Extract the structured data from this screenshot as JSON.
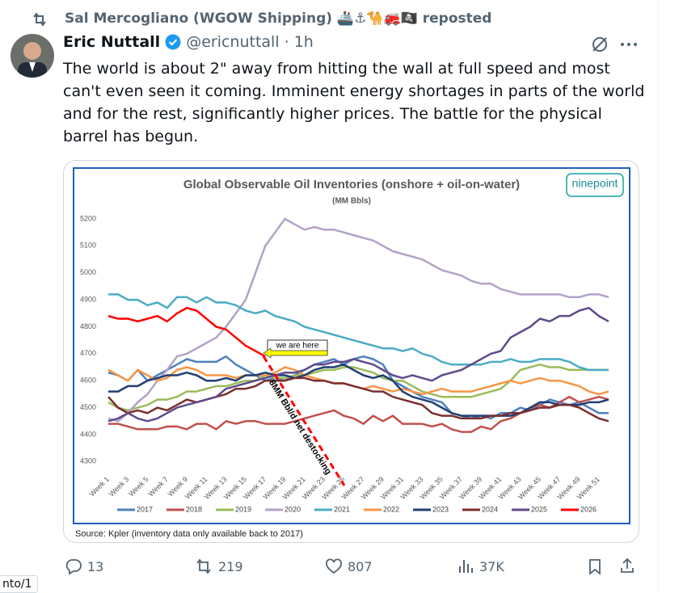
{
  "repost": "Sal Mercogliano (WGOW Shipping) 🚢⚓🐪🚒🏴‍☠️ reposted",
  "author": {
    "name": "Eric Nuttall",
    "handle": "@ericnuttall · 1h"
  },
  "body": "The world is about 2\" away from hitting the wall at full speed and most can't even seen it coming. Imminent energy shortages in parts of the world and for the rest, significantly higher prices. The battle for the physical barrel has begun.",
  "chart_data": {
    "type": "line",
    "title": "Global Observable Oil Inventories (onshore + oil-on-water)",
    "subtitle": "(MM Bbls)",
    "logo": "ninepoint",
    "source": "Source: Kpler (inventory data only available back to 2017)",
    "annotations": [
      "we are here",
      "8MM Bbl/d net destocking"
    ],
    "categories": [
      "Week 1",
      null,
      "Week 3",
      null,
      "Week 5",
      null,
      "Week 7",
      null,
      "Week 9",
      null,
      "Week 11",
      null,
      "Week 13",
      null,
      "Week 15",
      null,
      "Week 17",
      null,
      "Week 19",
      null,
      "Week 21",
      null,
      "Week 23",
      null,
      "Week 25",
      null,
      "Week 27",
      null,
      "Week 29",
      null,
      "Week 31",
      null,
      "Week 33",
      null,
      "Week 35",
      null,
      "Week 37",
      null,
      "Week 39",
      null,
      "Week 41",
      null,
      "Week 43",
      null,
      "Week 45",
      null,
      "Week 47",
      null,
      "Week 49",
      null,
      "Week 51",
      null
    ],
    "ylim": [
      4250,
      5200
    ],
    "yticks": [
      4300,
      4400,
      4500,
      4600,
      4700,
      4800,
      4900,
      5000,
      5100,
      5200
    ],
    "grid": false,
    "series": [
      {
        "name": "2017",
        "color": "#4f81bd",
        "values": [
          4630,
          4620,
          4600,
          4640,
          4600,
          4620,
          4640,
          4660,
          4680,
          4670,
          4670,
          4670,
          4690,
          4660,
          4640,
          4620,
          4600,
          4610,
          4600,
          4620,
          4640,
          4660,
          4670,
          4680,
          4660,
          4680,
          4690,
          4680,
          4660,
          4600,
          4580,
          4560,
          4540,
          4530,
          4520,
          4480,
          4470,
          4460,
          4470,
          4460,
          4480,
          4480,
          4500,
          4490,
          4510,
          4530,
          4520,
          4510,
          4520,
          4500,
          4480,
          4480
        ]
      },
      {
        "name": "2018",
        "color": "#c0504d",
        "values": [
          4440,
          4440,
          4430,
          4420,
          4420,
          4420,
          4430,
          4430,
          4420,
          4440,
          4440,
          4420,
          4450,
          4440,
          4450,
          4450,
          4440,
          4440,
          4440,
          4450,
          4460,
          4470,
          4480,
          4490,
          4470,
          4460,
          4440,
          4470,
          4450,
          4470,
          4440,
          4440,
          4440,
          4430,
          4440,
          4420,
          4410,
          4410,
          4430,
          4420,
          4450,
          4460,
          4480,
          4500,
          4510,
          4500,
          4520,
          4540,
          4520,
          4530,
          4540,
          4530
        ]
      },
      {
        "name": "2019",
        "color": "#9bbb59",
        "values": [
          4520,
          4500,
          4490,
          4500,
          4510,
          4530,
          4530,
          4540,
          4560,
          4560,
          4570,
          4580,
          4580,
          4590,
          4600,
          4600,
          4620,
          4610,
          4610,
          4620,
          4620,
          4630,
          4640,
          4640,
          4650,
          4650,
          4640,
          4630,
          4610,
          4600,
          4600,
          4580,
          4560,
          4550,
          4540,
          4540,
          4540,
          4540,
          4550,
          4560,
          4570,
          4600,
          4640,
          4650,
          4660,
          4650,
          4650,
          4640,
          4640,
          4640,
          4640,
          4640
        ]
      },
      {
        "name": "2020",
        "color": "#b3a2c7",
        "values": [
          4460,
          4450,
          4480,
          4520,
          4550,
          4600,
          4640,
          4690,
          4700,
          4720,
          4740,
          4760,
          4800,
          4850,
          4900,
          5000,
          5100,
          5150,
          5200,
          5180,
          5160,
          5170,
          5160,
          5160,
          5150,
          5140,
          5130,
          5120,
          5100,
          5080,
          5070,
          5060,
          5050,
          5030,
          5010,
          5000,
          4990,
          4970,
          4960,
          4960,
          4940,
          4930,
          4920,
          4920,
          4920,
          4920,
          4920,
          4910,
          4910,
          4920,
          4920,
          4910
        ]
      },
      {
        "name": "2021",
        "color": "#4bacc6",
        "values": [
          4920,
          4920,
          4900,
          4900,
          4880,
          4890,
          4870,
          4910,
          4910,
          4890,
          4910,
          4890,
          4890,
          4880,
          4860,
          4850,
          4860,
          4840,
          4830,
          4820,
          4800,
          4790,
          4780,
          4770,
          4760,
          4750,
          4740,
          4730,
          4720,
          4720,
          4710,
          4720,
          4700,
          4690,
          4670,
          4660,
          4660,
          4660,
          4660,
          4670,
          4670,
          4680,
          4670,
          4670,
          4680,
          4680,
          4680,
          4670,
          4650,
          4640,
          4640,
          4640
        ]
      },
      {
        "name": "2022",
        "color": "#f79646",
        "values": [
          4640,
          4620,
          4600,
          4640,
          4620,
          4600,
          4610,
          4640,
          4650,
          4640,
          4620,
          4620,
          4620,
          4610,
          4620,
          4620,
          4620,
          4630,
          4650,
          4640,
          4620,
          4610,
          4600,
          4590,
          4590,
          4580,
          4570,
          4580,
          4570,
          4560,
          4570,
          4560,
          4550,
          4560,
          4570,
          4560,
          4560,
          4560,
          4570,
          4580,
          4590,
          4600,
          4590,
          4600,
          4610,
          4600,
          4600,
          4590,
          4580,
          4560,
          4550,
          4560
        ]
      },
      {
        "name": "2023",
        "color": "#1f3f73",
        "values": [
          4560,
          4560,
          4580,
          4580,
          4600,
          4610,
          4620,
          4620,
          4630,
          4620,
          4600,
          4600,
          4610,
          4600,
          4620,
          4620,
          4630,
          4620,
          4620,
          4610,
          4620,
          4640,
          4650,
          4650,
          4660,
          4640,
          4620,
          4610,
          4620,
          4600,
          4560,
          4540,
          4530,
          4520,
          4500,
          4480,
          4470,
          4470,
          4470,
          4470,
          4470,
          4470,
          4480,
          4500,
          4520,
          4520,
          4510,
          4510,
          4510,
          4520,
          4520,
          4530
        ]
      },
      {
        "name": "2024",
        "color": "#7a2e2e",
        "values": [
          4540,
          4500,
          4480,
          4490,
          4480,
          4500,
          4490,
          4510,
          4530,
          4520,
          4530,
          4540,
          4550,
          4570,
          4570,
          4580,
          4600,
          4600,
          4600,
          4610,
          4610,
          4600,
          4600,
          4590,
          4590,
          4580,
          4570,
          4560,
          4560,
          4540,
          4530,
          4520,
          4510,
          4480,
          4470,
          4470,
          4460,
          4460,
          4460,
          4470,
          4470,
          4480,
          4480,
          4490,
          4500,
          4500,
          4510,
          4510,
          4500,
          4480,
          4460,
          4450
        ]
      },
      {
        "name": "2025",
        "color": "#5f4b8b",
        "values": [
          4450,
          4460,
          4480,
          4460,
          4450,
          4460,
          4480,
          4500,
          4510,
          4520,
          4530,
          4540,
          4570,
          4580,
          4590,
          4600,
          4610,
          4620,
          4630,
          4630,
          4640,
          4660,
          4660,
          4670,
          4670,
          4680,
          4670,
          4660,
          4640,
          4620,
          4610,
          4620,
          4610,
          4600,
          4620,
          4630,
          4640,
          4660,
          4680,
          4700,
          4710,
          4760,
          4780,
          4800,
          4830,
          4820,
          4840,
          4840,
          4860,
          4870,
          4840,
          4820
        ]
      },
      {
        "name": "2026",
        "color": "#ff0000",
        "values": [
          4840,
          4830,
          4830,
          4820,
          4830,
          4840,
          4820,
          4850,
          4870,
          4860,
          4830,
          4800,
          4790,
          4760,
          4730,
          4710,
          4690,
          null,
          null,
          null,
          null,
          null,
          null,
          null,
          null,
          null,
          null,
          null,
          null,
          null,
          null,
          null,
          null,
          null,
          null,
          null,
          null,
          null,
          null,
          null,
          null,
          null,
          null,
          null,
          null,
          null,
          null,
          null,
          null,
          null,
          null,
          null
        ]
      }
    ]
  },
  "stats": {
    "replies": "13",
    "reposts": "219",
    "likes": "807",
    "views": "37K"
  },
  "side_fragment": "nto/1"
}
